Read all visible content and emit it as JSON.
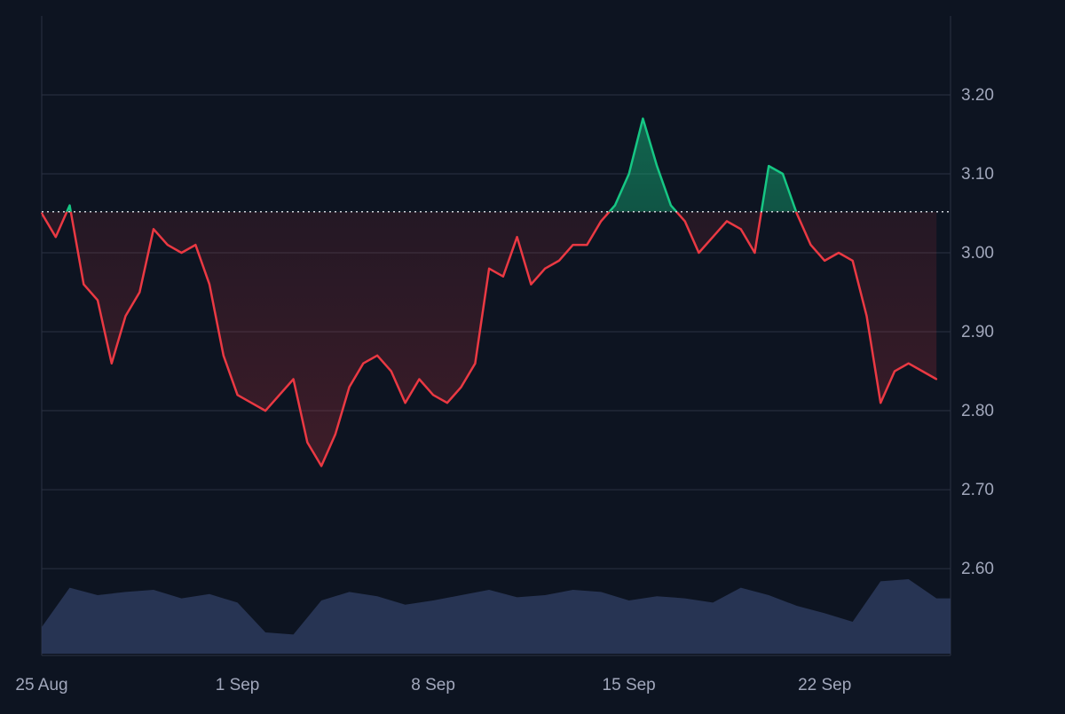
{
  "chart_data": {
    "type": "line",
    "title": "",
    "xlabel": "",
    "ylabel": "",
    "x_ticks": [
      "25 Aug",
      "1 Sep",
      "8 Sep",
      "15 Sep",
      "22 Sep"
    ],
    "y_ticks": [
      "3.20",
      "3.10",
      "3.00",
      "2.90",
      "2.80",
      "2.70",
      "2.60"
    ],
    "ylim": [
      2.49,
      3.3
    ],
    "baseline": 3.052,
    "grid": true,
    "colors": {
      "background": "#0d1421",
      "above": "#16c784",
      "below": "#ea3943",
      "volume": "#2d3a5c",
      "grid": "#2a3242",
      "axis_text": "#a1a7bb",
      "baseline": "#d0d4dc"
    },
    "series": [
      {
        "x": [
          "2025-08-25",
          "2025-08-25T12:00",
          "2025-08-26",
          "2025-08-26T12:00",
          "2025-08-27",
          "2025-08-27T12:00",
          "2025-08-28",
          "2025-08-28T12:00",
          "2025-08-29",
          "2025-08-29T12:00",
          "2025-08-30",
          "2025-08-30T12:00",
          "2025-08-31",
          "2025-08-31T12:00",
          "2025-09-01",
          "2025-09-01T12:00",
          "2025-09-02",
          "2025-09-02T12:00",
          "2025-09-03",
          "2025-09-03T12:00",
          "2025-09-04",
          "2025-09-04T12:00",
          "2025-09-05",
          "2025-09-05T12:00",
          "2025-09-06",
          "2025-09-06T12:00",
          "2025-09-07",
          "2025-09-07T12:00",
          "2025-09-08",
          "2025-09-08T12:00",
          "2025-09-09",
          "2025-09-09T12:00",
          "2025-09-10",
          "2025-09-10T12:00",
          "2025-09-11",
          "2025-09-11T12:00",
          "2025-09-12",
          "2025-09-12T12:00",
          "2025-09-13",
          "2025-09-13T12:00",
          "2025-09-14",
          "2025-09-14T12:00",
          "2025-09-15",
          "2025-09-15T12:00",
          "2025-09-16",
          "2025-09-16T12:00",
          "2025-09-17",
          "2025-09-17T12:00",
          "2025-09-18",
          "2025-09-18T12:00",
          "2025-09-19",
          "2025-09-19T12:00",
          "2025-09-20",
          "2025-09-20T12:00",
          "2025-09-21",
          "2025-09-21T12:00",
          "2025-09-22",
          "2025-09-22T12:00",
          "2025-09-23",
          "2025-09-23T12:00",
          "2025-09-24",
          "2025-09-24T12:00",
          "2025-09-25",
          "2025-09-25T12:00",
          "2025-09-26"
        ],
        "values": [
          3.05,
          3.02,
          3.06,
          2.96,
          2.94,
          2.86,
          2.92,
          2.95,
          3.03,
          3.01,
          3.0,
          3.01,
          2.96,
          2.87,
          2.82,
          2.81,
          2.8,
          2.82,
          2.84,
          2.76,
          2.73,
          2.77,
          2.83,
          2.86,
          2.87,
          2.85,
          2.81,
          2.84,
          2.82,
          2.81,
          2.83,
          2.86,
          2.98,
          2.97,
          3.02,
          2.96,
          2.98,
          2.99,
          3.01,
          3.01,
          3.04,
          3.06,
          3.1,
          3.17,
          3.11,
          3.06,
          3.04,
          3.0,
          3.02,
          3.04,
          3.03,
          3.0,
          3.11,
          3.1,
          3.05,
          3.01,
          2.99,
          3.0,
          2.99,
          2.92,
          2.81,
          2.85,
          2.86,
          2.85,
          2.84
        ]
      }
    ],
    "volume": {
      "x": [
        "2025-08-25",
        "2025-08-26",
        "2025-08-27",
        "2025-08-28",
        "2025-08-29",
        "2025-08-30",
        "2025-08-31",
        "2025-09-01",
        "2025-09-02",
        "2025-09-03",
        "2025-09-04",
        "2025-09-05",
        "2025-09-06",
        "2025-09-07",
        "2025-09-08",
        "2025-09-09",
        "2025-09-10",
        "2025-09-11",
        "2025-09-12",
        "2025-09-13",
        "2025-09-14",
        "2025-09-15",
        "2025-09-16",
        "2025-09-17",
        "2025-09-18",
        "2025-09-19",
        "2025-09-20",
        "2025-09-21",
        "2025-09-22",
        "2025-09-23",
        "2025-09-24",
        "2025-09-25",
        "2025-09-26"
      ],
      "values": [
        0.25,
        0.62,
        0.55,
        0.58,
        0.6,
        0.52,
        0.56,
        0.48,
        0.2,
        0.18,
        0.5,
        0.58,
        0.54,
        0.46,
        0.5,
        0.55,
        0.6,
        0.53,
        0.55,
        0.6,
        0.58,
        0.5,
        0.54,
        0.52,
        0.48,
        0.62,
        0.55,
        0.45,
        0.38,
        0.3,
        0.68,
        0.7,
        0.52
      ]
    }
  }
}
